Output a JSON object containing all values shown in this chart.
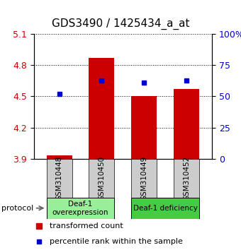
{
  "title": "GDS3490 / 1425434_a_at",
  "samples": [
    "GSM310448",
    "GSM310450",
    "GSM310449",
    "GSM310452"
  ],
  "bar_values": [
    3.93,
    4.87,
    4.5,
    4.57
  ],
  "blue_values": [
    4.52,
    4.65,
    4.63,
    4.65
  ],
  "y_min": 3.9,
  "y_max": 5.1,
  "y_ticks_left": [
    3.9,
    4.2,
    4.5,
    4.8,
    5.1
  ],
  "y_ticks_right": [
    0,
    25,
    50,
    75,
    100
  ],
  "y_ticks_right_labels": [
    "0",
    "25",
    "50",
    "75",
    "100%"
  ],
  "bar_color": "#cc0000",
  "blue_color": "#0000cc",
  "bar_bottom": 3.9,
  "groups": [
    {
      "label": "Deaf-1\noverexpression",
      "indices": [
        0,
        1
      ],
      "color": "#99ee99"
    },
    {
      "label": "Deaf-1 deficiency",
      "indices": [
        2,
        3
      ],
      "color": "#44cc44"
    }
  ],
  "protocol_label": "protocol",
  "legend_bar_label": "transformed count",
  "legend_blue_label": "percentile rank within the sample",
  "title_fontsize": 11,
  "tick_fontsize": 9,
  "label_color_left": "#cc0000",
  "label_color_right": "#0000cc",
  "sample_box_color": "#cccccc",
  "bar_width": 0.6
}
